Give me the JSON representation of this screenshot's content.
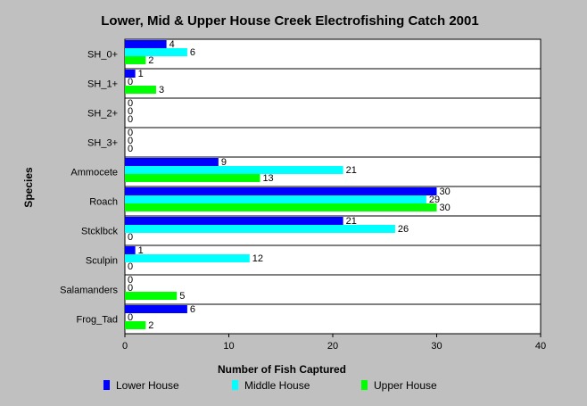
{
  "chart_data": {
    "type": "bar",
    "orientation": "horizontal",
    "title": "Lower, Mid & Upper House Creek Electrofishing Catch 2001",
    "xlabel": "Number of Fish Captured",
    "ylabel": "Species",
    "xlim": [
      0,
      40
    ],
    "xticks": [
      0,
      10,
      20,
      30,
      40
    ],
    "categories": [
      "SH_0+",
      "SH_1+",
      "SH_2+",
      "SH_3+",
      "Ammocete",
      "Roach",
      "Stcklbck",
      "Sculpin",
      "Salamanders",
      "Frog_Tad"
    ],
    "series": [
      {
        "name": "Lower House",
        "color": "#0000ff",
        "values": [
          4,
          1,
          0,
          0,
          9,
          30,
          21,
          1,
          0,
          6
        ]
      },
      {
        "name": "Middle House",
        "color": "#00ffff",
        "values": [
          6,
          0,
          0,
          0,
          21,
          29,
          26,
          12,
          0,
          0
        ]
      },
      {
        "name": "Upper House",
        "color": "#00ff00",
        "values": [
          2,
          3,
          0,
          0,
          13,
          30,
          0,
          0,
          5,
          2
        ]
      }
    ],
    "legend_position": "bottom",
    "grid": "horizontal separators between categories",
    "plot_background": "#ffffff",
    "page_background": "#c0c0c0"
  }
}
